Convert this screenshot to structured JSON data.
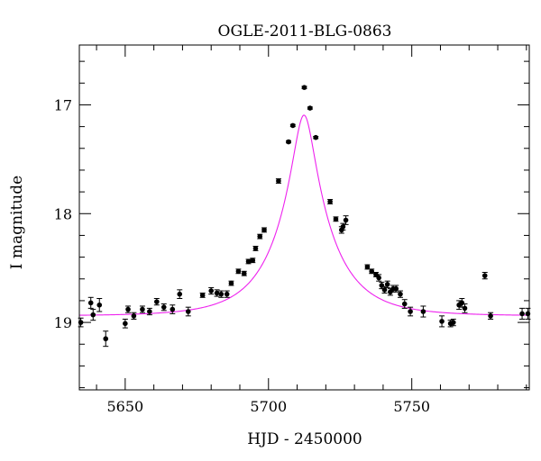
{
  "chart_data": {
    "type": "scatter",
    "title": "OGLE-2011-BLG-0863",
    "xlabel": "HJD - 2450000",
    "ylabel": "I magnitude",
    "xlim": [
      5634,
      5791
    ],
    "ylim": [
      19.62,
      16.45
    ],
    "y_inverted": true,
    "grid": false,
    "x_ticks": [
      5650,
      5700,
      5750
    ],
    "x_tick_labels": [
      "5650",
      "5700",
      "5750"
    ],
    "x_minor_step": 10,
    "y_ticks": [
      17,
      18,
      19
    ],
    "y_tick_labels": [
      "17",
      "18",
      "19"
    ],
    "y_minor_step": 0.2,
    "colors": {
      "points": "#000000",
      "model": "#ee22ee"
    },
    "model": {
      "name": "",
      "type": "point-lens",
      "t0": 5712.4,
      "u0": 0.185,
      "tE": 19,
      "baseline_mag": 18.94,
      "blend_fraction": 1.0
    },
    "series": [
      {
        "name": "",
        "x": [
          5634.5,
          5638.0,
          5638.8,
          5641.0,
          5643.2,
          5650.0,
          5651.0,
          5653.0,
          5656.0,
          5658.5,
          5661.0,
          5663.5,
          5666.5,
          5669.0,
          5672.0,
          5677.0,
          5680.0,
          5682.0,
          5683.5,
          5685.5,
          5687.0,
          5689.5,
          5691.5,
          5693.0,
          5694.5,
          5695.5,
          5697.0,
          5698.5,
          5703.5,
          5707.0,
          5708.5,
          5712.5,
          5714.5,
          5716.5,
          5721.5,
          5723.5,
          5725.5,
          5726.0,
          5727.0,
          5734.5,
          5736.0,
          5737.5,
          5738.5,
          5739.5,
          5740.5,
          5741.5,
          5742.5,
          5743.5,
          5744.5,
          5746.0,
          5747.5,
          5749.5,
          5754.0,
          5760.5,
          5763.5,
          5764.5,
          5766.5,
          5767.5,
          5768.5,
          5775.5,
          5777.5,
          5788.5,
          5790.5
        ],
        "y": [
          19.0,
          18.82,
          18.93,
          18.84,
          19.15,
          19.01,
          18.88,
          18.94,
          18.88,
          18.9,
          18.81,
          18.86,
          18.88,
          18.74,
          18.9,
          18.75,
          18.71,
          18.73,
          18.74,
          18.74,
          18.64,
          18.53,
          18.55,
          18.44,
          18.43,
          18.32,
          18.21,
          18.15,
          17.7,
          17.34,
          17.19,
          16.84,
          17.03,
          17.3,
          17.89,
          18.05,
          18.15,
          18.12,
          18.06,
          18.49,
          18.53,
          18.56,
          18.59,
          18.66,
          18.7,
          18.65,
          18.72,
          18.69,
          18.69,
          18.74,
          18.83,
          18.9,
          18.9,
          18.99,
          19.01,
          19.0,
          18.84,
          18.82,
          18.87,
          18.57,
          18.94,
          18.92,
          18.92
        ],
        "yerr": [
          0.04,
          0.05,
          0.05,
          0.06,
          0.07,
          0.04,
          0.03,
          0.03,
          0.03,
          0.03,
          0.03,
          0.03,
          0.04,
          0.04,
          0.04,
          0.02,
          0.03,
          0.03,
          0.03,
          0.03,
          0.02,
          0.02,
          0.02,
          0.02,
          0.02,
          0.02,
          0.02,
          0.02,
          0.02,
          0.01,
          0.01,
          0.01,
          0.01,
          0.01,
          0.02,
          0.02,
          0.03,
          0.03,
          0.04,
          0.02,
          0.02,
          0.02,
          0.03,
          0.03,
          0.03,
          0.03,
          0.03,
          0.03,
          0.03,
          0.03,
          0.04,
          0.04,
          0.05,
          0.05,
          0.03,
          0.03,
          0.04,
          0.04,
          0.04,
          0.03,
          0.03,
          0.05,
          0.05
        ]
      }
    ]
  }
}
